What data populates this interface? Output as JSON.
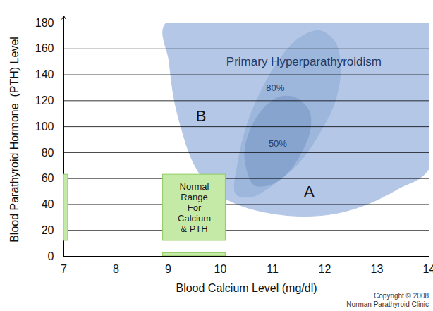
{
  "chart_data": {
    "type": "region",
    "x_label": "Blood Calcium Level (mg/dl)",
    "y_label": "Blood Parathyroid Hormone  (PTH) Level",
    "xlim": [
      7,
      14
    ],
    "xticks": [
      7,
      8,
      9,
      10,
      11,
      12,
      13,
      14
    ],
    "ylim": [
      0,
      180
    ],
    "yticks": [
      0,
      20,
      40,
      60,
      80,
      100,
      120,
      140,
      160,
      180
    ],
    "grid": true,
    "regions": [
      {
        "label": "Primary Hyperparathyroidism",
        "label_at": [
          11.6,
          150
        ],
        "color": "#b4c7e7",
        "points": [
          [
            8.96,
            180
          ],
          [
            9.02,
            150
          ],
          [
            9.12,
            120
          ],
          [
            9.28,
            95
          ],
          [
            9.45,
            75
          ],
          [
            9.7,
            58
          ],
          [
            10.0,
            47
          ],
          [
            10.4,
            39
          ],
          [
            11.0,
            33
          ],
          [
            11.6,
            31
          ],
          [
            12.2,
            33
          ],
          [
            12.8,
            40
          ],
          [
            13.4,
            52
          ],
          [
            14,
            68
          ],
          [
            14,
            180
          ]
        ]
      },
      {
        "label": "80%",
        "label_at": [
          11.05,
          130
        ],
        "color": "#9db6dc",
        "points": [
          [
            10.3,
            48
          ],
          [
            10.35,
            75
          ],
          [
            10.5,
            100
          ],
          [
            10.75,
            125
          ],
          [
            11.1,
            150
          ],
          [
            11.5,
            168
          ],
          [
            11.9,
            174
          ],
          [
            12.2,
            165
          ],
          [
            12.3,
            145
          ],
          [
            12.2,
            120
          ],
          [
            11.9,
            95
          ],
          [
            11.5,
            72
          ],
          [
            11.0,
            55
          ],
          [
            10.6,
            46
          ]
        ]
      },
      {
        "label": "50%",
        "label_at": [
          11.1,
          87
        ],
        "color": "#87a4cf",
        "points": [
          [
            10.65,
            55
          ],
          [
            10.5,
            68
          ],
          [
            10.47,
            82
          ],
          [
            10.6,
            100
          ],
          [
            10.85,
            115
          ],
          [
            11.15,
            123
          ],
          [
            11.45,
            122
          ],
          [
            11.7,
            112
          ],
          [
            11.72,
            98
          ],
          [
            11.55,
            80
          ],
          [
            11.3,
            65
          ],
          [
            11.0,
            56
          ]
        ]
      }
    ],
    "boxes": [
      {
        "label": "Normal\nRange\nFor\nCalcium\n& PTH",
        "x": [
          8.9,
          10.1
        ],
        "y": [
          12,
          63
        ],
        "color": "#c5eaa8"
      },
      {
        "x": [
          8.9,
          10.1
        ],
        "y": [
          0,
          2.5
        ],
        "color": "#c5eaa8"
      },
      {
        "x": [
          7,
          7.08
        ],
        "y": [
          12,
          63
        ],
        "color": "#c5eaa8"
      }
    ],
    "annotations": [
      {
        "text": "B",
        "x": 9.63,
        "y": 108
      },
      {
        "text": "A",
        "x": 11.7,
        "y": 50
      }
    ],
    "caption": "Copyright © 2008\nNorman Parathyroid Clinic"
  }
}
